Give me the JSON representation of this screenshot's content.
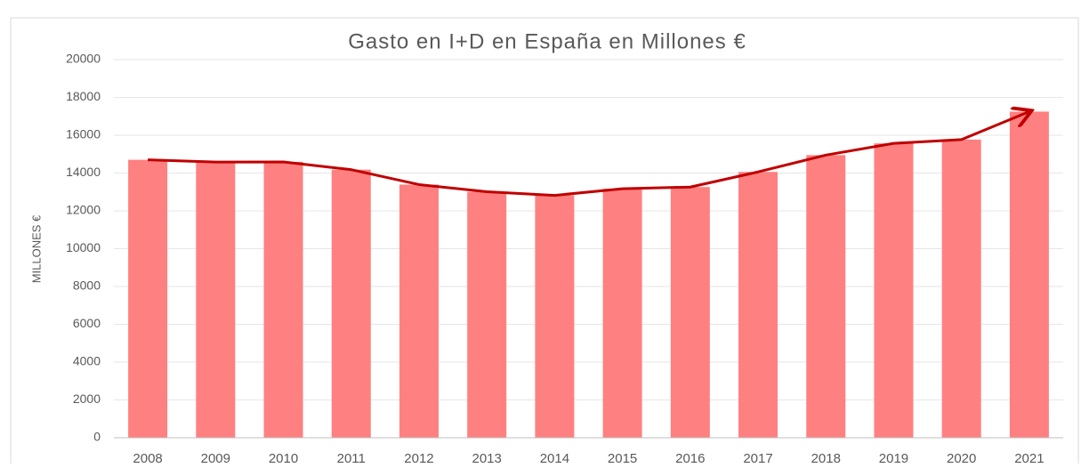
{
  "chart_data": {
    "type": "bar",
    "title": "Gasto en I+D en España en Millones €",
    "y_label": "MILLONES €",
    "categories": [
      "2008",
      "2009",
      "2010",
      "2011",
      "2012",
      "2013",
      "2014",
      "2015",
      "2016",
      "2017",
      "2018",
      "2019",
      "2020",
      "2021"
    ],
    "values": [
      14700,
      14580,
      14590,
      14180,
      13390,
      13010,
      12820,
      13170,
      13260,
      14060,
      14950,
      15570,
      15770,
      17250
    ],
    "color": "#ff8080",
    "trend_line": true,
    "trend_color": "#c00000",
    "ylim": [
      0,
      20000
    ],
    "yticks": [
      0,
      2000,
      4000,
      6000,
      8000,
      10000,
      12000,
      14000,
      16000,
      18000,
      20000
    ],
    "grid": true
  }
}
